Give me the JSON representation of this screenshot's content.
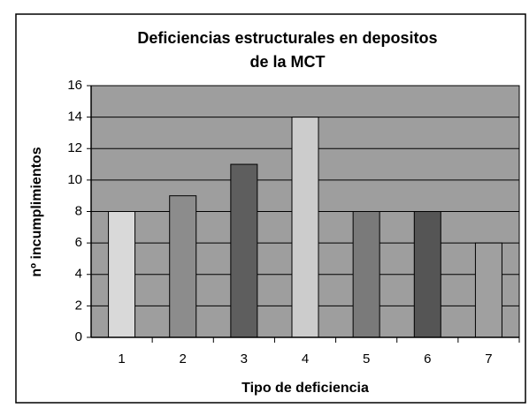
{
  "chart_data": {
    "type": "bar",
    "title": [
      "Deficiencias estructurales en depositos",
      "de la MCT"
    ],
    "x_label": "Tipo de deficiencia",
    "y_label": "nº incumplimientos",
    "categories": [
      "1",
      "2",
      "3",
      "4",
      "5",
      "6",
      "7"
    ],
    "values": [
      8,
      9,
      11,
      14,
      8,
      8,
      6
    ],
    "colors": [
      "#d9d9d9",
      "#8c8c8c",
      "#5e5e5e",
      "#cccccc",
      "#7a7a7a",
      "#555555",
      "#a0a0a0"
    ],
    "ylim": [
      0,
      16
    ],
    "yticks": [
      0,
      2,
      4,
      6,
      8,
      10,
      12,
      14,
      16
    ],
    "grid": true
  }
}
